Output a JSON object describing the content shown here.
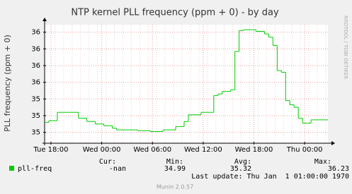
{
  "chart_data": {
    "type": "line",
    "title": "NTP kernel PLL frequency (ppm + 0) - by day",
    "y_label": "PLL frequency (ppm + 0)",
    "categories": [
      null,
      "Tue 18:00",
      null,
      null,
      null,
      null,
      null,
      null,
      null,
      null,
      null,
      null,
      null,
      "Wed 00:00",
      null,
      null,
      null,
      null,
      null,
      null,
      null,
      null,
      null,
      null,
      null,
      "Wed 06:00",
      null,
      null,
      null,
      null,
      null,
      null,
      null,
      null,
      null,
      null,
      null,
      "Wed 12:00",
      null,
      null,
      null,
      null,
      null,
      null,
      null,
      null,
      null,
      null,
      null,
      "Wed 18:00",
      null,
      null,
      null,
      null,
      null,
      null,
      null,
      null,
      null,
      null,
      null,
      "Thu 00:00",
      null,
      null,
      null,
      null,
      null
    ],
    "series": [
      {
        "name": "pll-freq",
        "color": "#00cc00",
        "values": [
          35.12,
          35.14,
          35.14,
          35.24,
          35.24,
          35.24,
          35.24,
          35.24,
          35.17,
          35.17,
          35.13,
          35.13,
          35.1,
          35.1,
          35.08,
          35.08,
          35.05,
          35.03,
          35.03,
          35.03,
          35.03,
          35.03,
          35.02,
          35.02,
          35.02,
          35.01,
          35.01,
          35.01,
          35.03,
          35.03,
          35.03,
          35.07,
          35.07,
          35.13,
          35.21,
          35.21,
          35.21,
          35.24,
          35.24,
          35.24,
          35.44,
          35.46,
          35.49,
          35.49,
          35.51,
          35.97,
          36.22,
          36.23,
          36.23,
          36.23,
          36.21,
          36.21,
          36.18,
          36.14,
          36.04,
          35.74,
          35.72,
          35.38,
          35.33,
          35.3,
          35.17,
          35.11,
          35.11,
          35.15,
          35.15,
          35.15,
          35.15
        ]
      }
    ],
    "ylim": [
      34.87,
      36.29
    ],
    "yticks": [
      35,
      {
        "value": 35.2,
        "label": "35"
      },
      {
        "value": 35.4,
        "label": "35"
      },
      {
        "value": 35.6,
        "label": "36"
      },
      {
        "value": 35.8,
        "label": "36"
      },
      {
        "value": 36.0,
        "label": "36"
      },
      {
        "value": 36.2,
        "label": "36"
      }
    ],
    "grid": true,
    "step": true,
    "stats": {
      "headers": [
        "Cur:",
        "Min:",
        "Avg:",
        "Max:"
      ],
      "values": [
        "-nan",
        34.99,
        35.32,
        36.23
      ]
    },
    "last_update": "Last update: Thu Jan  1 01:00:00 1970",
    "footer": "Munin 2.0.57",
    "watermark": "RRDTOOL / TOBI OETIKER"
  }
}
